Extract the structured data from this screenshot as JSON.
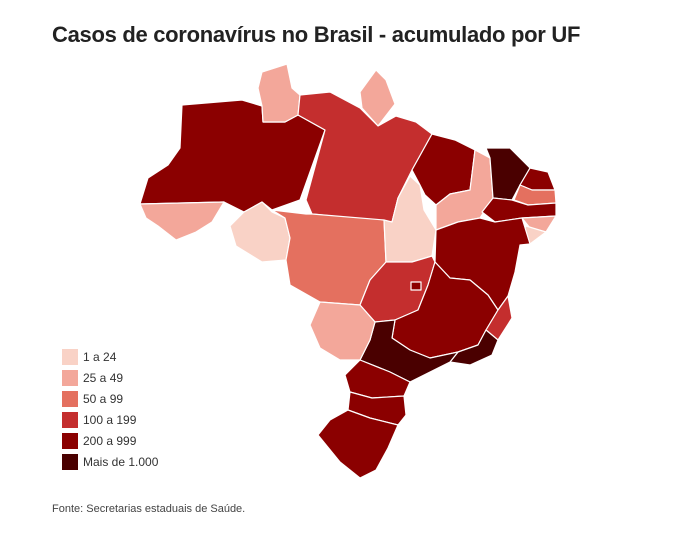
{
  "title": "Casos de coronavírus no Brasil - acumulado por UF",
  "source": "Fonte: Secretarias estaduais de Saúde.",
  "legend": [
    {
      "label": "1 a 24",
      "color": "#f9d2c6"
    },
    {
      "label": "25 a 49",
      "color": "#f3a79a"
    },
    {
      "label": "50 a 99",
      "color": "#e4705f"
    },
    {
      "label": "100 a 199",
      "color": "#c42e2e"
    },
    {
      "label": "200 a 999",
      "color": "#8b0000"
    },
    {
      "label": "Mais de 1.000",
      "color": "#4a0000"
    }
  ],
  "states": [
    {
      "uf": "AM",
      "range": "200 a 999"
    },
    {
      "uf": "RR",
      "range": "25 a 49"
    },
    {
      "uf": "AP",
      "range": "25 a 49"
    },
    {
      "uf": "PA",
      "range": "100 a 199"
    },
    {
      "uf": "AC",
      "range": "25 a 49"
    },
    {
      "uf": "RO",
      "range": "1 a 24"
    },
    {
      "uf": "MT",
      "range": "50 a 99"
    },
    {
      "uf": "TO",
      "range": "1 a 24"
    },
    {
      "uf": "MA",
      "range": "200 a 999"
    },
    {
      "uf": "PI",
      "range": "25 a 49"
    },
    {
      "uf": "CE",
      "range": "Mais de 1.000"
    },
    {
      "uf": "RN",
      "range": "200 a 999"
    },
    {
      "uf": "PB",
      "range": "50 a 99"
    },
    {
      "uf": "PE",
      "range": "200 a 999"
    },
    {
      "uf": "AL",
      "range": "25 a 49"
    },
    {
      "uf": "SE",
      "range": "1 a 24"
    },
    {
      "uf": "BA",
      "range": "200 a 999"
    },
    {
      "uf": "GO",
      "range": "100 a 199"
    },
    {
      "uf": "DF",
      "range": "200 a 999"
    },
    {
      "uf": "MG",
      "range": "200 a 999"
    },
    {
      "uf": "ES",
      "range": "100 a 199"
    },
    {
      "uf": "RJ",
      "range": "Mais de 1.000"
    },
    {
      "uf": "SP",
      "range": "Mais de 1.000"
    },
    {
      "uf": "MS",
      "range": "25 a 49"
    },
    {
      "uf": "PR",
      "range": "200 a 999"
    },
    {
      "uf": "SC",
      "range": "200 a 999"
    },
    {
      "uf": "RS",
      "range": "200 a 999"
    }
  ]
}
